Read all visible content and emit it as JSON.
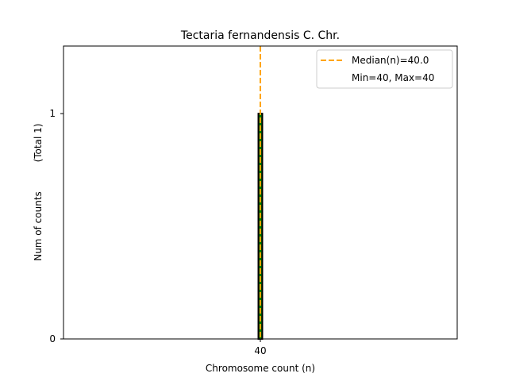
{
  "chart_data": {
    "type": "bar",
    "title": "Tectaria fernandensis C. Chr.",
    "xlabel": "Chromosome count (n)",
    "ylabel": "Num of counts",
    "ylabel_total": "(Total 1)",
    "categories": [
      "40"
    ],
    "values": [
      1
    ],
    "xlim": [
      35,
      45
    ],
    "ylim": [
      0,
      1.3
    ],
    "yticks": [
      0,
      1
    ],
    "xticks": [
      40
    ],
    "bar_width": 0.1,
    "median": 40.0,
    "grid": false,
    "legend": {
      "placement": "top-right",
      "entries": [
        {
          "label": "Median(n)=40.0",
          "style": "dashed-line",
          "color": "#ffa500"
        },
        {
          "label": "Min=40, Max=40",
          "style": "none"
        }
      ]
    },
    "colors": {
      "bar_fill": "#008000",
      "bar_edge": "#000000",
      "median_line": "#ffa500"
    }
  }
}
